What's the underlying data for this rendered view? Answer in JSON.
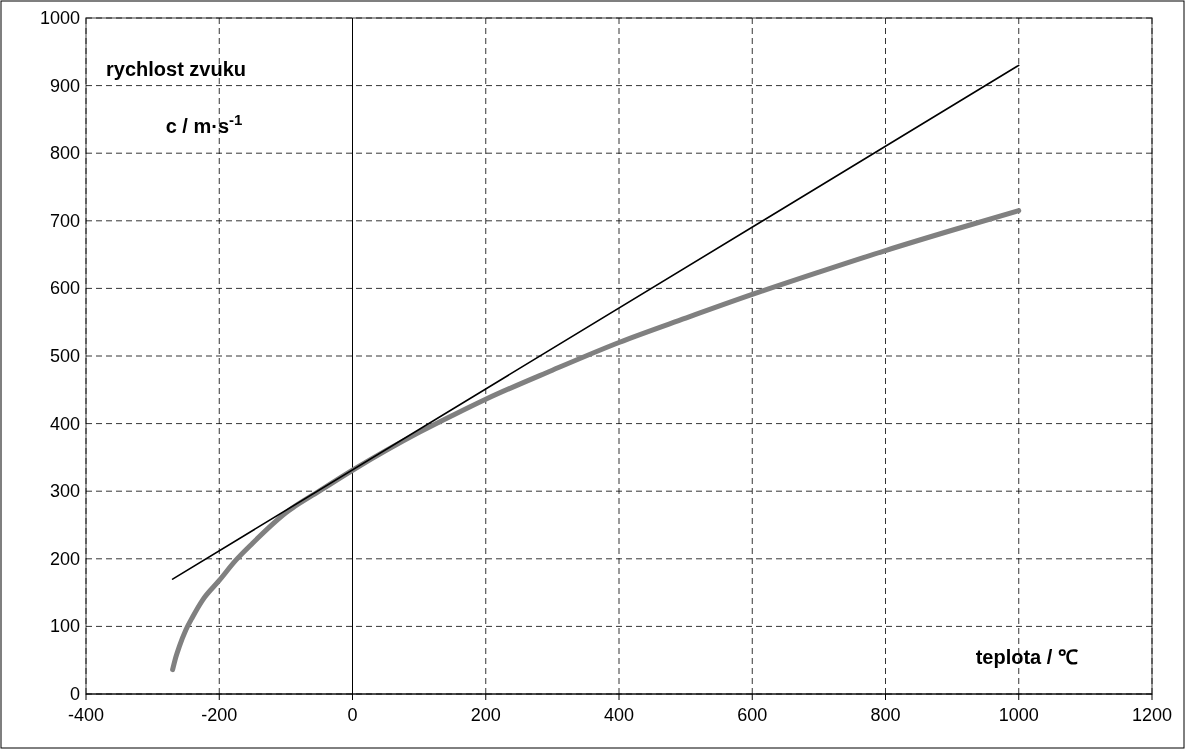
{
  "chart_data": {
    "type": "line",
    "xlabel": "teplota / ℃",
    "ylabel": "rychlost zvuku c / m·s$^{-1}$",
    "xlim": [
      -400,
      1200
    ],
    "xticks": [
      -400,
      -200,
      0,
      200,
      400,
      600,
      800,
      1000,
      1200
    ],
    "ylim": [
      0,
      1000
    ],
    "yticks": [
      0,
      100,
      200,
      300,
      400,
      500,
      600,
      700,
      800,
      900,
      1000
    ],
    "grid": true,
    "line_style": "solid",
    "marker": "none",
    "ref_lines": [
      {
        "axis": "x",
        "value": 0,
        "color": "#000000"
      }
    ],
    "series": [
      {
        "color": "#808080",
        "x": [
          -270,
          -265,
          -260,
          -250,
          -240,
          -225,
          -200,
          -175,
          -150,
          -100,
          -50,
          0,
          50,
          100,
          150,
          200,
          300,
          400,
          500,
          600,
          700,
          800,
          900,
          1000
        ],
        "values": [
          36,
          55,
          70,
          95,
          114,
          139,
          168,
          198,
          223,
          268,
          300,
          331,
          360,
          387,
          412,
          436,
          479,
          520,
          556,
          591,
          624,
          656,
          686,
          715
        ]
      },
      {
        "color": "#000000",
        "x": [
          -270,
          1000
        ],
        "values": [
          170,
          930
        ]
      }
    ]
  }
}
